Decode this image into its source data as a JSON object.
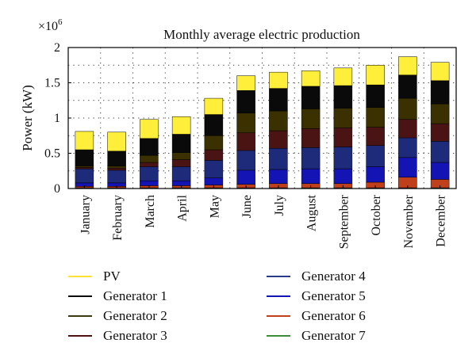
{
  "chart_data": {
    "type": "bar",
    "stacked": true,
    "title": "Monthly average electric production",
    "ylabel": "Power (kW)",
    "y_multiplier": "×10",
    "y_exponent": "6",
    "ylim": [
      0,
      2
    ],
    "yticks": [
      "0",
      "0.5",
      "1",
      "1.5",
      "2"
    ],
    "grid": "dotted",
    "legend_position": "bottom",
    "categories": [
      "January",
      "February",
      "March",
      "April",
      "May",
      "June",
      "July",
      "August",
      "September",
      "October",
      "November",
      "December"
    ],
    "series": [
      {
        "name": "Generator 7",
        "color": "#2e7d32",
        "values": [
          0.01,
          0.01,
          0.01,
          0.01,
          0.01,
          0.01,
          0.01,
          0.01,
          0.01,
          0.01,
          0.01,
          0.01
        ]
      },
      {
        "name": "Generator 6",
        "color": "#c0401c",
        "values": [
          0.02,
          0.02,
          0.03,
          0.03,
          0.04,
          0.05,
          0.06,
          0.06,
          0.06,
          0.08,
          0.15,
          0.12
        ]
      },
      {
        "name": "Generator 5",
        "color": "#1414b4",
        "values": [
          0.05,
          0.05,
          0.07,
          0.07,
          0.1,
          0.2,
          0.2,
          0.21,
          0.21,
          0.22,
          0.28,
          0.24
        ]
      },
      {
        "name": "Generator 4",
        "color": "#1e2a7a",
        "values": [
          0.2,
          0.18,
          0.2,
          0.2,
          0.25,
          0.28,
          0.3,
          0.3,
          0.31,
          0.3,
          0.28,
          0.3
        ]
      },
      {
        "name": "Generator 3",
        "color": "#4a1414",
        "values": [
          0.02,
          0.03,
          0.06,
          0.1,
          0.15,
          0.25,
          0.25,
          0.27,
          0.27,
          0.26,
          0.26,
          0.25
        ]
      },
      {
        "name": "Generator 2",
        "color": "#3a3000",
        "values": [
          0.02,
          0.03,
          0.1,
          0.1,
          0.2,
          0.28,
          0.28,
          0.28,
          0.28,
          0.28,
          0.3,
          0.28
        ]
      },
      {
        "name": "Generator 1",
        "color": "#0a0a0a",
        "values": [
          0.23,
          0.21,
          0.24,
          0.26,
          0.3,
          0.32,
          0.32,
          0.32,
          0.32,
          0.32,
          0.33,
          0.33
        ]
      },
      {
        "name": "PV",
        "color": "#ffef3a",
        "values": [
          0.26,
          0.27,
          0.27,
          0.25,
          0.23,
          0.21,
          0.23,
          0.22,
          0.25,
          0.28,
          0.26,
          0.26
        ]
      }
    ]
  },
  "legend": [
    {
      "name": "PV",
      "color": "#ffe234"
    },
    {
      "name": "Generator 1",
      "color": "#0a0a0a"
    },
    {
      "name": "Generator 2",
      "color": "#3a3a10"
    },
    {
      "name": "Generator 3",
      "color": "#4a1414"
    },
    {
      "name": "Generator 4",
      "color": "#2a3a8a"
    },
    {
      "name": "Generator 5",
      "color": "#1414b4"
    },
    {
      "name": "Generator 6",
      "color": "#c0401c"
    },
    {
      "name": "Generator 7",
      "color": "#3a8a3a"
    }
  ]
}
